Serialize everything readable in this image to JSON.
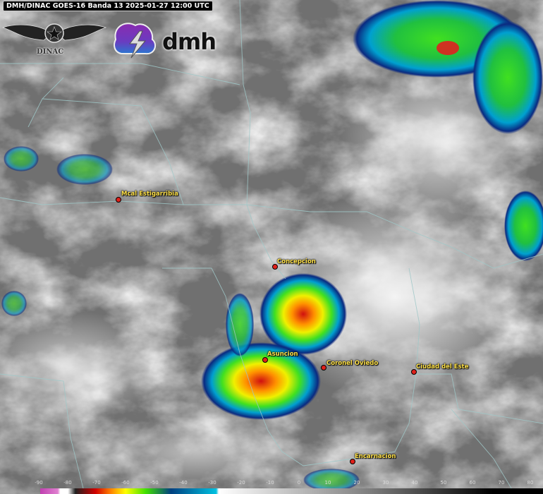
{
  "header": {
    "title": "DMH/DINAC GOES-16 Banda 13 2025-01-27 12:00 UTC"
  },
  "logos": {
    "dinac": "DINAC",
    "dmh": "dmh"
  },
  "cities": [
    {
      "name": "Mcal Estigarribia"
    },
    {
      "name": "Concepcion"
    },
    {
      "name": "Asuncion"
    },
    {
      "name": "Coronel Oviedo"
    },
    {
      "name": "Ciudad del Este"
    },
    {
      "name": "Encarnacion"
    }
  ],
  "colorbar": {
    "ticks": [
      "-90",
      "-80",
      "-70",
      "-60",
      "-50",
      "-40",
      "-30",
      "-20",
      "-10",
      "0",
      "10",
      "20",
      "30",
      "40",
      "50",
      "60",
      "70",
      "80"
    ],
    "colors": [
      "#c040b0",
      "#e080d0",
      "#ffffff",
      "#202020",
      "#d00000",
      "#ff8000",
      "#ffff00",
      "#40e000",
      "#004080",
      "#00c0e0",
      "#ffffff",
      "#808080",
      "#000000"
    ]
  }
}
